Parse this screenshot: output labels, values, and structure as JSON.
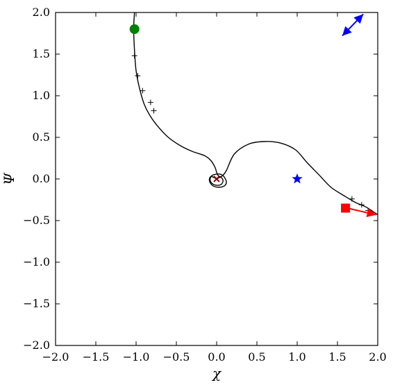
{
  "chart_data": {
    "type": "line",
    "xlabel": "χ",
    "ylabel": "Ψ",
    "xlim": [
      -2.0,
      2.0
    ],
    "ylim": [
      -2.0,
      2.0
    ],
    "xticks": [
      -2.0,
      -1.5,
      -1.0,
      -0.5,
      0.0,
      0.5,
      1.0,
      1.5,
      2.0
    ],
    "yticks": [
      -2.0,
      -1.5,
      -1.0,
      -0.5,
      0.0,
      0.5,
      1.0,
      1.5,
      2.0
    ],
    "xtick_labels": [
      "−2.0",
      "−1.5",
      "−1.0",
      "−0.5",
      "0.0",
      "0.5",
      "1.0",
      "1.5",
      "2.0"
    ],
    "ytick_labels": [
      "−2.0",
      "−1.5",
      "−1.0",
      "−0.5",
      "0.0",
      "0.5",
      "1.0",
      "1.5",
      "2.0"
    ],
    "grid": false,
    "colors": {
      "curve": "#000000",
      "start_marker": "#008000",
      "star": "#0000ff",
      "square": "#ff0000",
      "arrow_blue": "#0000ff",
      "arrow_red": "#ff0000",
      "center_x": "#8b0000"
    },
    "series": [
      {
        "style": "solid-black",
        "x": [
          -1.02,
          -1.03,
          -1.02,
          -1.0,
          -0.96,
          -0.9,
          -0.82,
          -0.72,
          -0.6,
          -0.45,
          -0.3,
          -0.15,
          -0.07,
          -0.02,
          0.0,
          0.02,
          0.06,
          0.12,
          0.22,
          0.4,
          0.6,
          0.8,
          0.98,
          1.12,
          1.28,
          1.42,
          1.58,
          1.72,
          1.86,
          2.0
        ],
        "y": [
          2.0,
          1.8,
          1.55,
          1.3,
          1.1,
          0.9,
          0.75,
          0.62,
          0.5,
          0.4,
          0.33,
          0.28,
          0.22,
          0.14,
          0.08,
          0.04,
          0.03,
          0.1,
          0.3,
          0.42,
          0.45,
          0.43,
          0.35,
          0.2,
          0.04,
          -0.1,
          -0.2,
          -0.28,
          -0.34,
          -0.43
        ]
      },
      {
        "style": "spiral-black",
        "x": [
          0.0,
          0.05,
          0.08,
          0.05,
          -0.03,
          -0.08,
          -0.06,
          0.02,
          0.08,
          0.12,
          0.1,
          0.03,
          -0.05,
          -0.09,
          -0.07,
          0.0
        ],
        "y": [
          0.0,
          0.02,
          -0.02,
          -0.07,
          -0.07,
          -0.02,
          0.04,
          0.06,
          0.04,
          -0.03,
          -0.08,
          -0.1,
          -0.08,
          -0.02,
          0.03,
          0.0
        ]
      }
    ],
    "tick_marks": {
      "x": [
        -1.02,
        -0.98,
        -0.92,
        -0.82,
        -0.78,
        1.68,
        1.8,
        1.88
      ],
      "y": [
        1.48,
        1.24,
        1.06,
        0.92,
        0.82,
        -0.24,
        -0.31,
        -0.38
      ]
    },
    "markers": [
      {
        "name": "start",
        "shape": "circle",
        "x": -1.02,
        "y": 1.8,
        "color": "#008000"
      },
      {
        "name": "star",
        "shape": "star",
        "x": 1.0,
        "y": 0.0,
        "color": "#0000ff"
      },
      {
        "name": "square",
        "shape": "square",
        "x": 1.6,
        "y": -0.35,
        "color": "#ff0000"
      },
      {
        "name": "center",
        "shape": "x",
        "x": 0.0,
        "y": 0.0,
        "color": "#8b0000"
      }
    ],
    "arrows": [
      {
        "name": "blue-arrow",
        "color": "#0000ff",
        "x1": 1.56,
        "y1": 1.72,
        "x2": 1.82,
        "y2": 1.98,
        "heads": "both"
      },
      {
        "name": "red-arrow",
        "color": "#ff0000",
        "x1": 1.62,
        "y1": -0.35,
        "x2": 1.98,
        "y2": -0.43,
        "heads": "end"
      }
    ]
  }
}
